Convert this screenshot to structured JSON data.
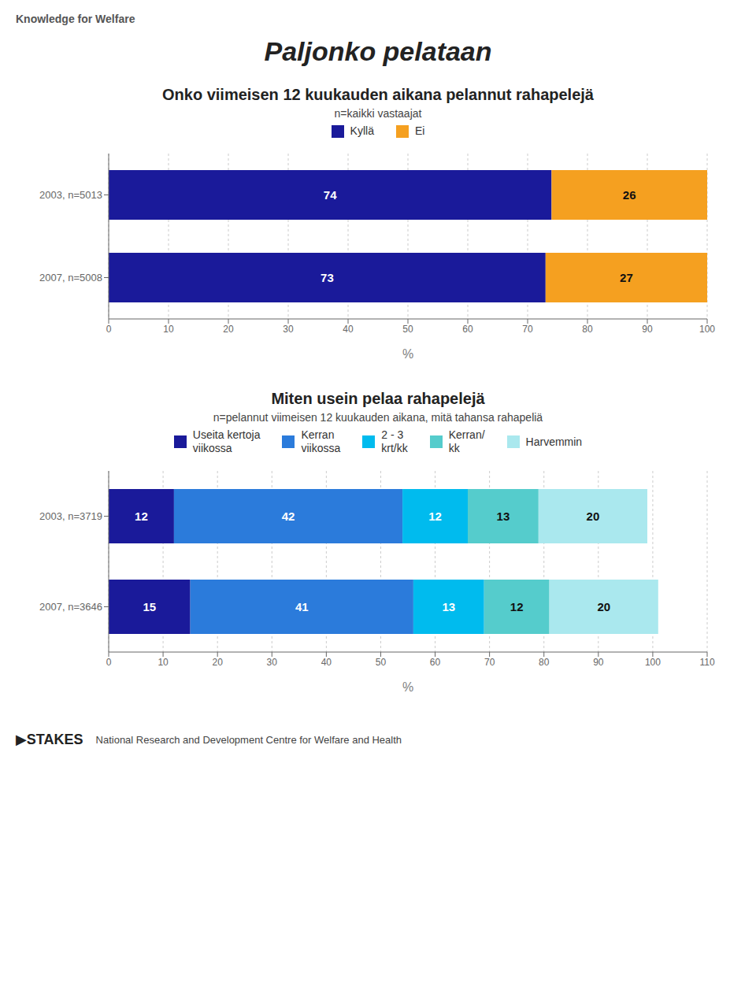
{
  "chart_data": [
    {
      "type": "bar",
      "orientation": "horizontal",
      "stacked": true,
      "data_labels": true,
      "grid": true,
      "legend": "top",
      "annotations": [
        "Knowledge for Welfare",
        "Paljonko pelataan"
      ],
      "title": "Onko viimeisen 12 kuukauden aikana pelannut rahapelejä",
      "subtitle": "n=kaikki vastaajat",
      "categories": [
        "2003, n=5013",
        "2007, n=5008"
      ],
      "series": [
        {
          "name": "Kyllä",
          "color": "#1a1a9a",
          "values": [
            74,
            73
          ]
        },
        {
          "name": "Ei",
          "color": "#f5a020",
          "values": [
            26,
            27
          ]
        }
      ],
      "x_label": "%",
      "xlim": [
        0,
        100
      ],
      "xticks": [
        0,
        10,
        20,
        30,
        40,
        50,
        60,
        70,
        80,
        90,
        100
      ]
    },
    {
      "type": "bar",
      "orientation": "horizontal",
      "stacked": true,
      "data_labels": true,
      "grid": true,
      "legend": "top",
      "annotations": [
        "▶STAKES",
        "National Research and Development Centre for Welfare and Health"
      ],
      "title": "Miten usein pelaa rahapelejä",
      "subtitle": "n=pelannut viimeisen 12 kuukauden aikana, mitä tahansa rahapeliä",
      "categories": [
        "2003, n=3719",
        "2007, n=3646"
      ],
      "series": [
        {
          "name": "Useita kertoja\nviikossa",
          "color": "#1a1a9a",
          "values": [
            12,
            15
          ]
        },
        {
          "name": "Kerran\nviikossa",
          "color": "#2b7bdb",
          "values": [
            42,
            41
          ]
        },
        {
          "name": "2 - 3\nkrt/kk",
          "color": "#00bbee",
          "values": [
            12,
            13
          ]
        },
        {
          "name": "Kerran/\nkk",
          "color": "#55cccc",
          "values": [
            13,
            12
          ]
        },
        {
          "name": "Harvemmin",
          "color": "#aae8ee",
          "values": [
            20,
            20
          ]
        }
      ],
      "x_label": "%",
      "xlim": [
        0,
        110
      ],
      "xticks": [
        0,
        10,
        20,
        30,
        40,
        50,
        60,
        70,
        80,
        90,
        100,
        110
      ]
    }
  ]
}
